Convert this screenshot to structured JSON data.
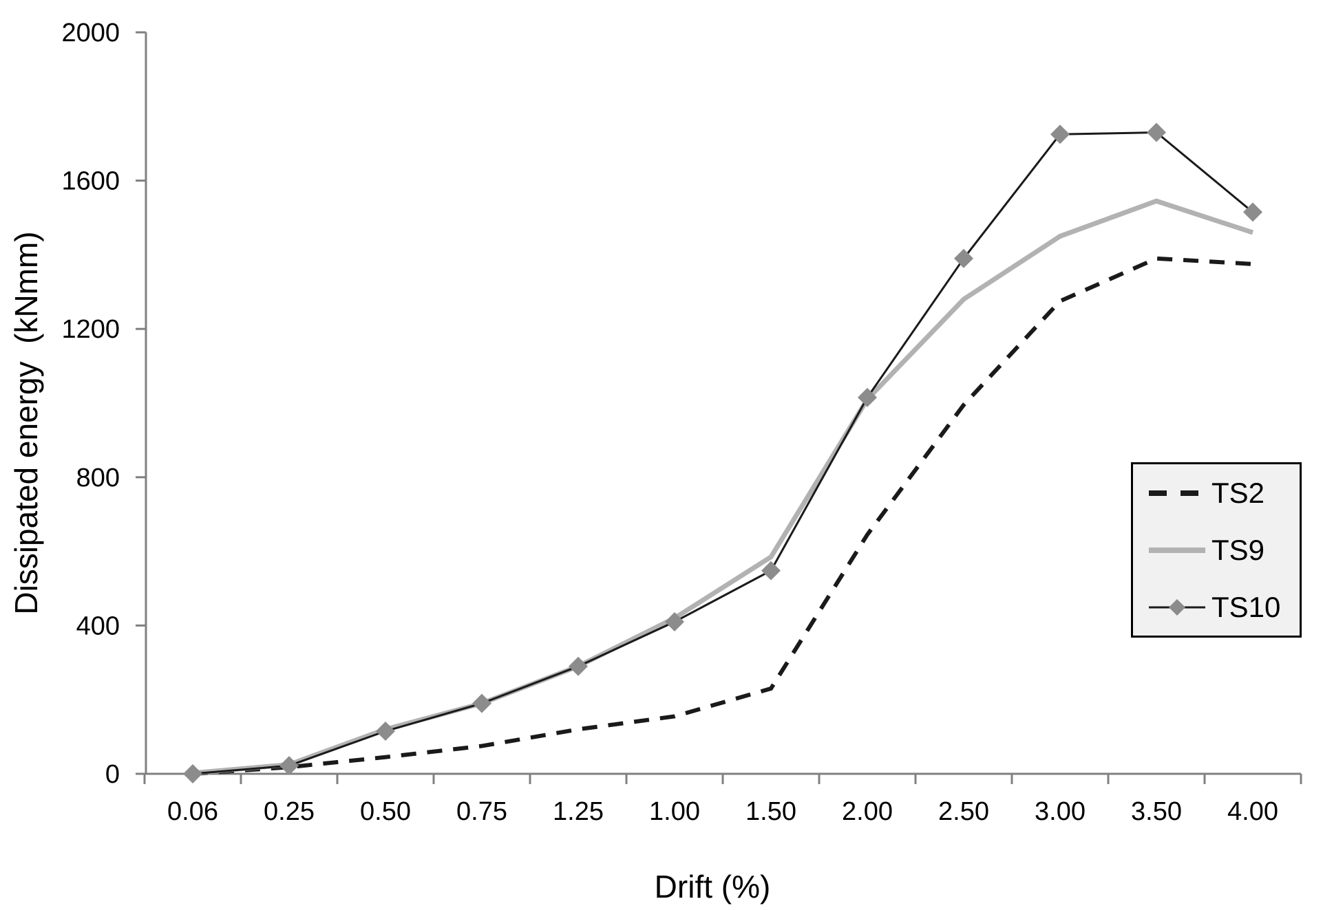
{
  "page": {
    "background": "#ffffff"
  },
  "chart_data": {
    "type": "line",
    "title": "",
    "xlabel": "Drift (%)",
    "ylabel": "Dissipated energy  (kNmm)",
    "categories": [
      "0.06",
      "0.25",
      "0.50",
      "0.75",
      "1.25",
      "1.00",
      "1.50",
      "2.00",
      "2.50",
      "3.00",
      "3.50",
      "4.00"
    ],
    "ylim": [
      0,
      2000
    ],
    "y_ticks": [
      0,
      400,
      800,
      1200,
      1600,
      2000
    ],
    "grid": false,
    "legend_position": "middle-right",
    "axis_color": "#808080",
    "legend_bg": "#f1f1f1",
    "legend_border": "#000000",
    "series": [
      {
        "name": "TS2",
        "style": "dashed",
        "color": "#1a1a1a",
        "width": 6,
        "dash": "22 16",
        "marker": "none",
        "values": [
          0,
          18,
          45,
          75,
          120,
          155,
          230,
          645,
          995,
          1275,
          1390,
          1375
        ]
      },
      {
        "name": "TS9",
        "style": "solid",
        "color": "#b2b2b2",
        "width": 7,
        "marker": "none",
        "values": [
          2,
          25,
          120,
          190,
          290,
          420,
          585,
          1010,
          1280,
          1450,
          1545,
          1460
        ]
      },
      {
        "name": "TS10",
        "style": "solid",
        "color": "#1a1a1a",
        "width": 3,
        "marker": "diamond",
        "marker_color": "#8c8c8c",
        "marker_size": 14,
        "values": [
          0,
          22,
          115,
          190,
          290,
          410,
          548,
          1015,
          1390,
          1725,
          1730,
          1515
        ]
      }
    ]
  }
}
